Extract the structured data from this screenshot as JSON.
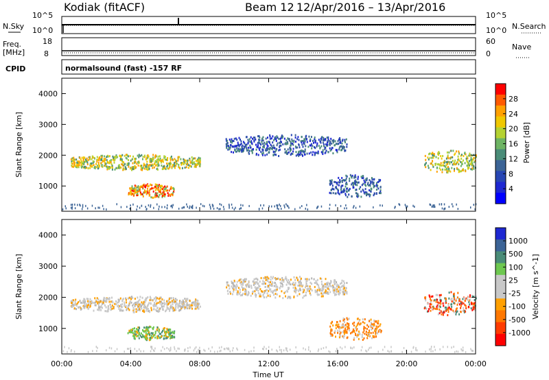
{
  "header": {
    "radar": "Kodiak (fitACF)",
    "beam": "Beam 12",
    "date_range": "12/Apr/2016 – 13/Apr/2016"
  },
  "panels": {
    "nsky_label": "N.Sky",
    "nsearch_label": "N.Search",
    "nsky_ticks": [
      "10^5",
      "10^0"
    ],
    "nsearch_ticks": [
      "10^5",
      "10^0"
    ],
    "freq_label": "Freq.",
    "freq_unit": "[MHz]",
    "freq_ticks": [
      "18",
      "8"
    ],
    "nave_label": "Nave",
    "nave_ticks": [
      "60",
      "0"
    ],
    "cpid_label": "CPID",
    "cpid_text": "normalsound (fast) -157 RF"
  },
  "chart_data": [
    {
      "type": "heatmap",
      "title": "",
      "ylabel": "Slant Range [km]",
      "ylim": [
        180,
        4500
      ],
      "yticks": [
        "1000",
        "2000",
        "3000",
        "4000"
      ],
      "colorbar_label": "Power [dB]",
      "colorbar_ticks": [
        "28",
        "24",
        "20",
        "16",
        "12",
        "8",
        "4"
      ],
      "colorbar_colors": [
        "#ff0000",
        "#ff5a00",
        "#ffa000",
        "#f0c800",
        "#b4d232",
        "#6eb464",
        "#4a8c78",
        "#3c6496",
        "#2846b4",
        "#1e28d2",
        "#0000ff"
      ],
      "features": [
        {
          "hours": [
            0.5,
            8.0
          ],
          "range_km": [
            1550,
            2050
          ],
          "value": "16-24",
          "desc_level": "mid"
        },
        {
          "hours": [
            3.8,
            6.5
          ],
          "range_km": [
            650,
            1100
          ],
          "value": "20-28",
          "desc_level": "high"
        },
        {
          "hours": [
            9.5,
            16.5
          ],
          "range_km": [
            2000,
            2700
          ],
          "value": "4-12",
          "desc_level": "low"
        },
        {
          "hours": [
            15.5,
            18.5
          ],
          "range_km": [
            650,
            1400
          ],
          "value": "4-12",
          "desc_level": "low"
        },
        {
          "hours": [
            21.0,
            24.0
          ],
          "range_km": [
            1450,
            2200
          ],
          "value": "12-24",
          "desc_level": "mid"
        }
      ]
    },
    {
      "type": "heatmap",
      "title": "",
      "ylabel": "Slant Range [km]",
      "ylim": [
        180,
        4500
      ],
      "yticks": [
        "1000",
        "2000",
        "3000",
        "4000"
      ],
      "xlabel": "Time UT",
      "xticks": [
        "00:00",
        "04:00",
        "08:00",
        "12:00",
        "16:00",
        "20:00",
        "00:00"
      ],
      "colorbar_label": "Velocity [m s^-1]",
      "colorbar_ticks": [
        "1000",
        "500",
        "100",
        "25",
        "-25",
        "-100",
        "-500",
        "-1000"
      ],
      "colorbar_colors": [
        "#1e28d2",
        "#3c6496",
        "#4a8c78",
        "#6ec850",
        "#c8c8c8",
        "#c8c8c8",
        "#ffa000",
        "#ff7800",
        "#ff3c00",
        "#ff0000"
      ],
      "features": [
        {
          "hours": [
            0.5,
            8.0
          ],
          "range_km": [
            1550,
            2050
          ],
          "value": "-25 to 25",
          "desc_level": "gray"
        },
        {
          "hours": [
            3.8,
            6.5
          ],
          "range_km": [
            650,
            1100
          ],
          "value": "100 to 500",
          "desc_level": "green"
        },
        {
          "hours": [
            9.5,
            16.5
          ],
          "range_km": [
            2000,
            2700
          ],
          "value": "-25 to 25",
          "desc_level": "gray"
        },
        {
          "hours": [
            15.5,
            18.5
          ],
          "range_km": [
            650,
            1400
          ],
          "value": "-100 to -500",
          "desc_level": "orange"
        },
        {
          "hours": [
            21.0,
            24.0
          ],
          "range_km": [
            1450,
            2200
          ],
          "value": "-100 to -1000",
          "desc_level": "red"
        }
      ]
    }
  ]
}
